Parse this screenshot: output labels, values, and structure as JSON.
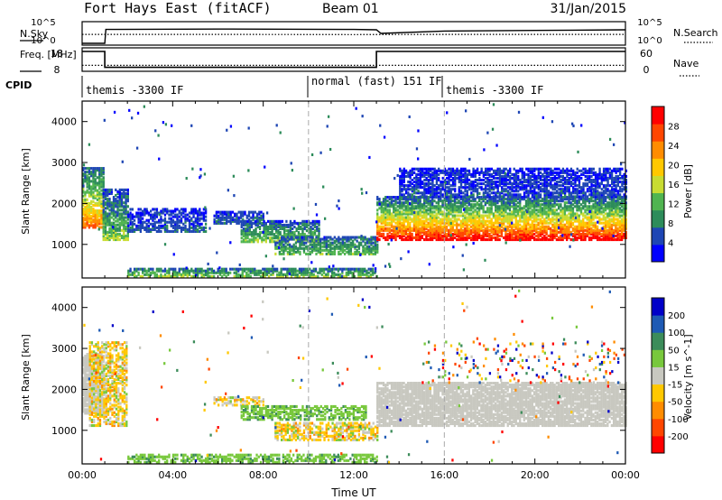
{
  "header": {
    "title": "Fort Hays East (fitACF)",
    "beam": "Beam 01",
    "date": "31/Jan/2015"
  },
  "colors": {
    "ground_scatter": "#c8c8c0",
    "power_scale": [
      "#0000ff",
      "#1e46b4",
      "#2d8c5a",
      "#50b450",
      "#c8dc32",
      "#ffc800",
      "#ff8c00",
      "#ff4600",
      "#ff0000"
    ],
    "velocity_scale": [
      "#0000c8",
      "#1e5ab4",
      "#3c8c5a",
      "#78c83c",
      "#c8c8c0",
      "#ffc800",
      "#ff8c00",
      "#ff4600",
      "#ff0000"
    ]
  },
  "chart_data": [
    {
      "type": "line",
      "name": "noise-panel",
      "left_label": "N.Sky",
      "right_label": "N.Search",
      "left_ticks": [
        "10^5",
        "10^0"
      ],
      "right_ticks": [
        "10^5",
        "10^0"
      ],
      "xlim": [
        "00:00",
        "24:00"
      ],
      "series": [
        {
          "name": "N.Sky",
          "style": "solid",
          "x": [
            0,
            1.0,
            1.05,
            6,
            12,
            13,
            13.2,
            16,
            20,
            24
          ],
          "y": [
            0.0,
            0.0,
            0.7,
            0.72,
            0.7,
            0.68,
            0.5,
            0.62,
            0.65,
            0.68
          ]
        },
        {
          "name": "N.Search",
          "style": "dotted",
          "x": [
            0,
            6,
            12,
            16,
            24
          ],
          "y": [
            0.45,
            0.45,
            0.44,
            0.45,
            0.45
          ]
        }
      ]
    },
    {
      "type": "line",
      "name": "freq-nave-panel",
      "left_label": "Freq. [MHz]",
      "right_label": "Nave",
      "left_ticks": [
        "18",
        "8"
      ],
      "right_ticks": [
        "60",
        "0"
      ],
      "series": [
        {
          "name": "Freq.",
          "style": "solid",
          "x": [
            0,
            1.0,
            1.0,
            13.0,
            13.0,
            24
          ],
          "y": [
            18,
            18,
            8.2,
            8.2,
            18,
            18
          ]
        },
        {
          "name": "Nave",
          "style": "dotted",
          "x": [
            0,
            24
          ],
          "y": [
            16,
            16
          ]
        }
      ]
    },
    {
      "type": "table",
      "name": "cpid-bar",
      "label": "CPID",
      "segments": [
        {
          "start": 0,
          "end": 10,
          "text": "themis -3300 IF"
        },
        {
          "start": 10,
          "end": 16,
          "text": "normal (fast) 151 IF"
        },
        {
          "start": 16,
          "end": 24,
          "text": "themis -3300 IF"
        }
      ]
    },
    {
      "type": "heatmap",
      "name": "power-panel",
      "ylabel": "Slant Range [km]",
      "ylim": [
        180,
        4500
      ],
      "yticks": [
        1000,
        2000,
        3000,
        4000
      ],
      "xlim": [
        0,
        24
      ],
      "colorbar_label": "Power [dB]",
      "colorbar_ticks": [
        "28",
        "24",
        "20",
        "16",
        "12",
        "8",
        "4"
      ],
      "regions": [
        {
          "t0": 0.0,
          "t1": 0.9,
          "r0": 1450,
          "r1": 2900,
          "v0": 24,
          "v1": 6
        },
        {
          "t0": 0.9,
          "t1": 2.0,
          "r0": 1150,
          "r1": 2400,
          "v0": 14,
          "v1": 4
        },
        {
          "t0": 2.0,
          "t1": 5.5,
          "r0": 1350,
          "r1": 1900,
          "v0": 6,
          "v1": 3
        },
        {
          "t0": 5.8,
          "t1": 8.0,
          "r0": 1550,
          "r1": 1850,
          "v0": 6,
          "v1": 4
        },
        {
          "t0": 7.0,
          "t1": 10.5,
          "r0": 1100,
          "r1": 1600,
          "v0": 14,
          "v1": 5
        },
        {
          "t0": 8.5,
          "t1": 13.0,
          "r0": 800,
          "r1": 1250,
          "v0": 12,
          "v1": 5
        },
        {
          "t0": 2.0,
          "t1": 13.0,
          "r0": 250,
          "r1": 450,
          "v0": 14,
          "v1": 6
        },
        {
          "t0": 13.0,
          "t1": 24.0,
          "r0": 1150,
          "r1": 2200,
          "v0": 30,
          "v1": 5
        },
        {
          "t0": 14.0,
          "t1": 24.0,
          "r0": 2200,
          "r1": 2900,
          "v0": 5,
          "v1": 3
        }
      ]
    },
    {
      "type": "heatmap",
      "name": "velocity-panel",
      "ylabel": "Slant Range [km]",
      "ylim": [
        180,
        4500
      ],
      "yticks": [
        1000,
        2000,
        3000,
        4000
      ],
      "xlim": [
        0,
        24
      ],
      "xlabel": "Time UT",
      "xticks": [
        "00:00",
        "04:00",
        "08:00",
        "12:00",
        "16:00",
        "20:00",
        "00:00"
      ],
      "colorbar_label": "Velocity [m s^-1]",
      "colorbar_ticks": [
        "200",
        "100",
        "50",
        "15",
        "-15",
        "-50",
        "-100",
        "-200"
      ],
      "regions": [
        {
          "t0": 0.0,
          "t1": 0.9,
          "r0": 1450,
          "r1": 2900,
          "kind": "ground"
        },
        {
          "t0": 0.3,
          "t1": 2.0,
          "r0": 1150,
          "r1": 3200,
          "kind": "mixed_orange"
        },
        {
          "t0": 5.8,
          "t1": 8.0,
          "r0": 1650,
          "r1": 1850,
          "kind": "mixed_orange"
        },
        {
          "t0": 7.0,
          "t1": 12.5,
          "r0": 1300,
          "r1": 1650,
          "kind": "green"
        },
        {
          "t0": 8.5,
          "t1": 13.0,
          "r0": 800,
          "r1": 1250,
          "kind": "mixed_orange"
        },
        {
          "t0": 2.0,
          "t1": 13.0,
          "r0": 250,
          "r1": 450,
          "kind": "green"
        },
        {
          "t0": 13.0,
          "t1": 24.0,
          "r0": 1150,
          "r1": 2200,
          "kind": "ground"
        },
        {
          "t0": 15.0,
          "t1": 24.0,
          "r0": 2200,
          "r1": 3200,
          "kind": "sparse"
        }
      ]
    }
  ]
}
